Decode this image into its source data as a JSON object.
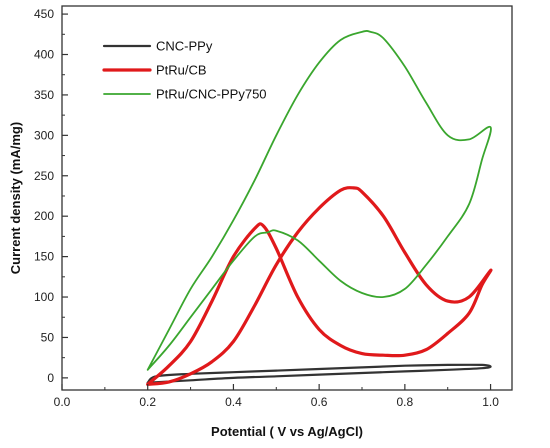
{
  "chart_data": {
    "type": "line",
    "xlabel": "Potential ( V vs Ag/AgCl)",
    "ylabel": "Current density (mA/mg)",
    "xlim": [
      0.0,
      1.05
    ],
    "ylim": [
      -15,
      460
    ],
    "xticks": [
      "0.0",
      "0.2",
      "0.4",
      "0.6",
      "0.8",
      "1.0"
    ],
    "yticks": [
      "0",
      "50",
      "100",
      "150",
      "200",
      "250",
      "300",
      "350",
      "400",
      "450"
    ],
    "legend_position": "top-left",
    "series": [
      {
        "name": "CNC-PPy",
        "color": "#333333",
        "x": [
          0.2,
          0.3,
          0.4,
          0.5,
          0.6,
          0.7,
          0.8,
          0.9,
          0.98,
          1.0,
          0.98,
          0.9,
          0.8,
          0.7,
          0.6,
          0.5,
          0.4,
          0.3,
          0.22,
          0.2
        ],
        "y": [
          -6,
          -3,
          0,
          2,
          4,
          6,
          8,
          10,
          12,
          14,
          16,
          16,
          15,
          13,
          11,
          9,
          7,
          5,
          2,
          -6
        ]
      },
      {
        "name": "PtRu/CB",
        "color": "#e0191b",
        "x": [
          0.2,
          0.25,
          0.3,
          0.35,
          0.4,
          0.45,
          0.5,
          0.55,
          0.6,
          0.65,
          0.68,
          0.7,
          0.75,
          0.8,
          0.85,
          0.9,
          0.95,
          1.0,
          0.98,
          0.95,
          0.9,
          0.85,
          0.8,
          0.75,
          0.7,
          0.65,
          0.6,
          0.55,
          0.5,
          0.47,
          0.45,
          0.4,
          0.35,
          0.3,
          0.25,
          0.2
        ],
        "y": [
          -8,
          -5,
          5,
          20,
          45,
          90,
          140,
          180,
          210,
          232,
          235,
          230,
          200,
          155,
          115,
          95,
          100,
          133,
          115,
          80,
          55,
          35,
          28,
          28,
          30,
          40,
          60,
          100,
          160,
          188,
          185,
          150,
          95,
          45,
          15,
          -8
        ]
      },
      {
        "name": "PtRu/CNC-PPy750",
        "color": "#3aa62e",
        "x": [
          0.2,
          0.25,
          0.3,
          0.35,
          0.4,
          0.45,
          0.5,
          0.55,
          0.6,
          0.65,
          0.7,
          0.72,
          0.75,
          0.8,
          0.85,
          0.9,
          0.95,
          1.0,
          0.98,
          0.95,
          0.9,
          0.85,
          0.8,
          0.75,
          0.7,
          0.65,
          0.6,
          0.55,
          0.5,
          0.48,
          0.45,
          0.4,
          0.35,
          0.3,
          0.25,
          0.2
        ],
        "y": [
          10,
          60,
          110,
          150,
          195,
          245,
          300,
          350,
          390,
          418,
          428,
          428,
          420,
          385,
          340,
          300,
          295,
          310,
          270,
          215,
          175,
          140,
          110,
          100,
          105,
          120,
          145,
          170,
          182,
          180,
          175,
          145,
          110,
          75,
          40,
          10
        ]
      }
    ]
  }
}
